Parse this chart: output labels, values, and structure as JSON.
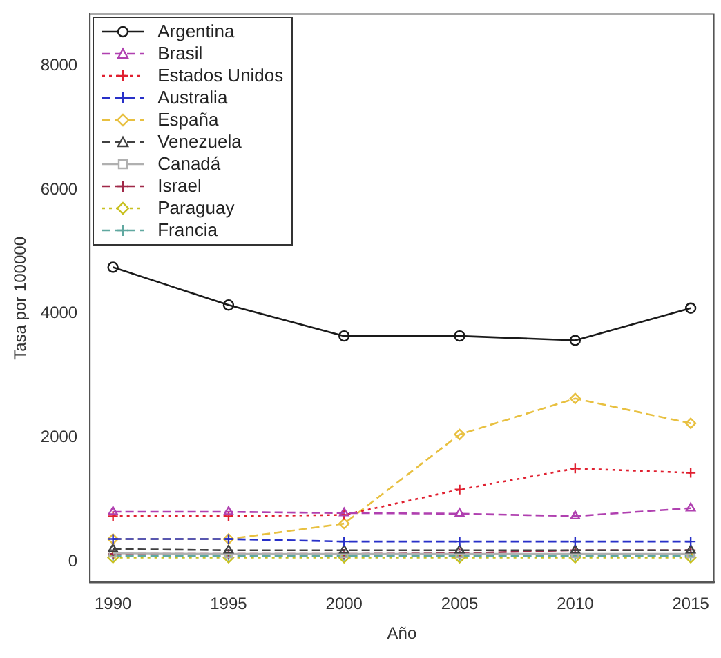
{
  "chart_data": {
    "type": "line",
    "xlabel": "Año",
    "ylabel": "Tasa por 100000",
    "x": [
      1990,
      1995,
      2000,
      2005,
      2010,
      2015
    ],
    "xlim": [
      1989,
      2016
    ],
    "xticks": [
      1990,
      1995,
      2000,
      2005,
      2010,
      2015
    ],
    "ylim": [
      -340,
      8840
    ],
    "yticks": [
      0,
      2000,
      4000,
      6000,
      8000
    ],
    "grid": false,
    "legend": "top left",
    "series": [
      {
        "name": "Argentina",
        "color": "#1a1a1a",
        "marker": "circle",
        "line_style": "solid",
        "values": [
          4750,
          4140,
          3640,
          3640,
          3570,
          4090
        ]
      },
      {
        "name": "Brasil",
        "color": "#b040b0",
        "marker": "triangle",
        "line_style": "dashed",
        "values": [
          800,
          800,
          780,
          770,
          730,
          860
        ]
      },
      {
        "name": "Estados Unidos",
        "color": "#e02030",
        "marker": "cross",
        "line_style": "dotted",
        "values": [
          730,
          730,
          750,
          1160,
          1500,
          1430
        ]
      },
      {
        "name": "Australia",
        "color": "#2830c8",
        "marker": "cross",
        "line_style": "dashed",
        "values": [
          360,
          360,
          320,
          320,
          320,
          320
        ]
      },
      {
        "name": "España",
        "color": "#e8c040",
        "marker": "diamond",
        "line_style": "dashed",
        "values": [
          360,
          360,
          610,
          2050,
          2630,
          2230
        ]
      },
      {
        "name": "Venezuela",
        "color": "#404040",
        "marker": "triangle",
        "line_style": "dashed",
        "values": [
          200,
          180,
          180,
          180,
          180,
          180
        ]
      },
      {
        "name": "Canadá",
        "color": "#b0b0b0",
        "marker": "square",
        "line_style": "solid",
        "values": [
          130,
          120,
          120,
          120,
          120,
          120
        ]
      },
      {
        "name": "Israel",
        "color": "#a02848",
        "marker": "cross",
        "line_style": "dashed",
        "values": [
          120,
          120,
          120,
          130,
          180,
          180
        ]
      },
      {
        "name": "Paraguay",
        "color": "#c8c020",
        "marker": "diamond",
        "line_style": "dotted",
        "values": [
          60,
          60,
          60,
          60,
          60,
          60
        ]
      },
      {
        "name": "Francia",
        "color": "#60a8a0",
        "marker": "cross",
        "line_style": "dashed",
        "values": [
          90,
          90,
          90,
          90,
          90,
          90
        ]
      }
    ]
  }
}
